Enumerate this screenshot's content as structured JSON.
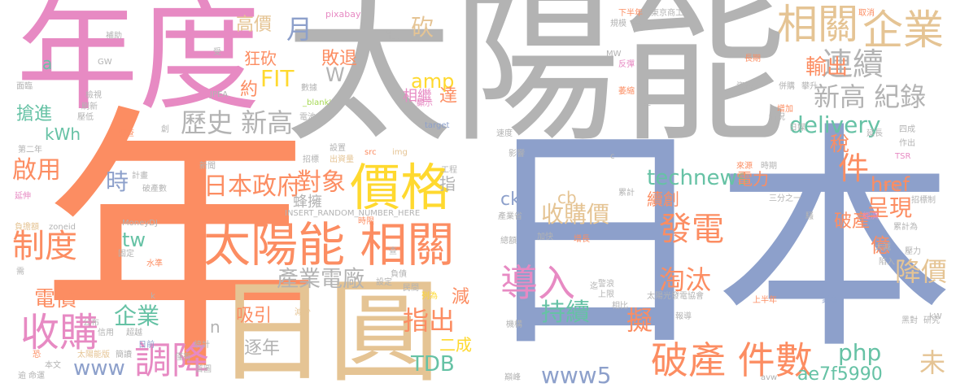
{
  "colors": {
    "orange": "#fc8d62",
    "blue": "#8da0cb",
    "pink": "#e78ac3",
    "green": "#66c2a5",
    "gray": "#b3b3b3",
    "tan": "#e5c494",
    "yellow": "#ffd92f",
    "lime": "#a6d854"
  },
  "words": [
    {
      "id": "w-nian",
      "text": "年",
      "color": "orange"
    },
    {
      "id": "w-riben",
      "text": "日本",
      "color": "blue"
    },
    {
      "id": "w-taiyangneng",
      "text": "太陽能",
      "color": "gray"
    },
    {
      "id": "w-niandu",
      "text": "年度",
      "color": "pink"
    },
    {
      "id": "w-riyuan",
      "text": "日圓",
      "color": "tan"
    },
    {
      "id": "w-taiyangneng-xiangguan",
      "text": "太陽能 相關",
      "color": "orange"
    },
    {
      "id": "w-jiage",
      "text": "價格",
      "color": "yellow"
    },
    {
      "id": "w-xiangguan",
      "text": "相關",
      "color": "tan"
    },
    {
      "id": "w-qiye-top",
      "text": "企業",
      "color": "tan"
    },
    {
      "id": "w-shougou",
      "text": "收購",
      "color": "pink"
    },
    {
      "id": "w-pochan-jianshu",
      "text": "破產 件數",
      "color": "orange"
    },
    {
      "id": "w-daoru",
      "text": "導入",
      "color": "pink"
    },
    {
      "id": "w-zhidu",
      "text": "制度",
      "color": "orange"
    },
    {
      "id": "w-tiaojiang",
      "text": "調降",
      "color": "pink"
    },
    {
      "id": "w-fadian",
      "text": "發電",
      "color": "orange"
    },
    {
      "id": "w-lianxu",
      "text": "連續",
      "color": "gray"
    },
    {
      "id": "w-xingao-jilu",
      "text": "新高 紀錄",
      "color": "gray"
    },
    {
      "id": "w-lishi-xingao",
      "text": "歷史 新高",
      "color": "gray"
    },
    {
      "id": "w-jian",
      "text": "件",
      "color": "orange"
    },
    {
      "id": "w-riben-zhengfu",
      "text": "日本政府",
      "color": "orange"
    },
    {
      "id": "w-duixiang",
      "text": "對象",
      "color": "orange"
    },
    {
      "id": "w-shougoujia",
      "text": "收購價",
      "color": "tan"
    },
    {
      "id": "w-chanye-dianchang",
      "text": "產業電廠",
      "color": "gray"
    },
    {
      "id": "w-delivery",
      "text": "delivery",
      "color": "green"
    },
    {
      "id": "w-technews",
      "text": "technews",
      "color": "green"
    },
    {
      "id": "w-chixu",
      "text": "持續",
      "color": "green"
    },
    {
      "id": "w-zhichu",
      "text": "指出",
      "color": "orange"
    },
    {
      "id": "w-qiye-bottom",
      "text": "企業",
      "color": "green"
    },
    {
      "id": "w-www5",
      "text": "www5",
      "color": "blue"
    },
    {
      "id": "w-php",
      "text": "php",
      "color": "green"
    },
    {
      "id": "w-tdb",
      "text": "TDB",
      "color": "green"
    },
    {
      "id": "w-taotai",
      "text": "淘汰",
      "color": "orange"
    },
    {
      "id": "w-jiangjia",
      "text": "降價",
      "color": "tan"
    },
    {
      "id": "w-chengxian",
      "text": "呈現",
      "color": "orange"
    },
    {
      "id": "w-xibu",
      "text": "吸引",
      "color": "orange"
    },
    {
      "id": "w-zhunian",
      "text": "逐年",
      "color": "gray"
    },
    {
      "id": "w-ni",
      "text": "擬",
      "color": "orange"
    },
    {
      "id": "w-wei",
      "text": "未",
      "color": "tan"
    },
    {
      "id": "w-fit",
      "text": "FIT",
      "color": "yellow"
    },
    {
      "id": "w-amp",
      "text": "amp",
      "color": "yellow"
    },
    {
      "id": "w-shuchu",
      "text": "輸出",
      "color": "orange"
    },
    {
      "id": "w-qiyong",
      "text": "啟用",
      "color": "orange"
    },
    {
      "id": "w-dianjia",
      "text": "電價",
      "color": "orange"
    },
    {
      "id": "w-www",
      "text": "www",
      "color": "blue"
    },
    {
      "id": "w-tw",
      "text": "tw",
      "color": "green"
    },
    {
      "id": "w-shi",
      "text": "時",
      "color": "blue"
    },
    {
      "id": "w-yue",
      "text": "月",
      "color": "blue"
    },
    {
      "id": "w-kuang-kan",
      "text": "狂砍",
      "color": "orange"
    },
    {
      "id": "w-gaojia",
      "text": "高價",
      "color": "tan"
    },
    {
      "id": "w-baitui",
      "text": "敗退",
      "color": "orange"
    },
    {
      "id": "w-kan",
      "text": "砍",
      "color": "tan"
    },
    {
      "id": "w-yue2",
      "text": "約",
      "color": "orange"
    },
    {
      "id": "w-w",
      "text": "W",
      "color": "gray"
    },
    {
      "id": "w-xiangji",
      "text": "相繼",
      "color": "pink"
    },
    {
      "id": "w-da",
      "text": "達",
      "color": "orange"
    },
    {
      "id": "w-qiangjin",
      "text": "搶進",
      "color": "green"
    },
    {
      "id": "w-kwh",
      "text": "kWh",
      "color": "green"
    },
    {
      "id": "w-href",
      "text": "href",
      "color": "orange"
    },
    {
      "id": "w-shui",
      "text": "稅",
      "color": "orange"
    },
    {
      "id": "w-dianli",
      "text": "電力",
      "color": "orange"
    },
    {
      "id": "w-xuchuang",
      "text": "續創",
      "color": "orange"
    },
    {
      "id": "w-yi",
      "text": "億",
      "color": "orange"
    },
    {
      "id": "w-pochan",
      "text": "破產",
      "color": "orange"
    },
    {
      "id": "w-jian2",
      "text": "減",
      "color": "orange"
    },
    {
      "id": "w-ercheng",
      "text": "二成",
      "color": "yellow"
    },
    {
      "id": "w-ck",
      "text": "ck",
      "color": "blue"
    },
    {
      "id": "w-cb",
      "text": "cb",
      "color": "tan"
    },
    {
      "id": "w-ae7f",
      "text": "ae7f5990",
      "color": "green"
    },
    {
      "id": "w-fengyong",
      "text": "蜂擁",
      "color": "gray"
    },
    {
      "id": "w-n",
      "text": "n",
      "color": "gray"
    },
    {
      "id": "w-zhi",
      "text": "指",
      "color": "gray"
    },
    {
      "id": "w-han",
      "text": "含",
      "color": "gray"
    },
    {
      "id": "w-a",
      "text": "a",
      "color": "green"
    },
    {
      "id": "w-pixabay",
      "text": "pixabay",
      "color": "pink"
    },
    {
      "id": "w-jihua",
      "text": "計劃",
      "color": "gray"
    },
    {
      "id": "w-shou",
      "text": "受",
      "color": "gray"
    },
    {
      "id": "w-gw",
      "text": "GW",
      "color": "gray"
    },
    {
      "id": "w-buzhu",
      "text": "補助",
      "color": "gray"
    },
    {
      "id": "w-mianlin",
      "text": "面臨",
      "color": "gray"
    },
    {
      "id": "w-jianshi",
      "text": "檢視",
      "color": "gray"
    },
    {
      "id": "w-jiangdi",
      "text": "壓低",
      "color": "gray"
    },
    {
      "id": "w-shuaxin",
      "text": "刷新",
      "color": "gray"
    },
    {
      "id": "w-diaocha",
      "text": "調查",
      "color": "orange"
    },
    {
      "id": "w-chuang",
      "text": "創",
      "color": "gray"
    },
    {
      "id": "w-jpea",
      "text": "JPEA",
      "color": "gray"
    },
    {
      "id": "w-shuju",
      "text": "數據",
      "color": "gray"
    },
    {
      "id": "w-dianchi",
      "text": "電池",
      "color": "gray"
    },
    {
      "id": "w-blank",
      "text": "_blank'",
      "color": "lime"
    },
    {
      "id": "w-target",
      "text": "target",
      "color": "blue"
    },
    {
      "id": "w-xianshi",
      "text": "顯示",
      "color": "pink"
    },
    {
      "id": "w-dierian",
      "text": "第二年",
      "color": "gray"
    },
    {
      "id": "w-xinwen",
      "text": "新聞",
      "color": "gray"
    },
    {
      "id": "w-yanshen",
      "text": "延伸",
      "color": "pink"
    },
    {
      "id": "w-jihua2",
      "text": "計畫",
      "color": "gray"
    },
    {
      "id": "w-pochanshu",
      "text": "破產數",
      "color": "gray"
    },
    {
      "id": "w-shezhi",
      "text": "設置",
      "color": "gray"
    },
    {
      "id": "w-chuzijin",
      "text": "出資量",
      "color": "tan"
    },
    {
      "id": "w-zhaobiao",
      "text": "招標",
      "color": "gray"
    },
    {
      "id": "w-src",
      "text": "src",
      "color": "orange"
    },
    {
      "id": "w-img",
      "text": "img",
      "color": "tan"
    },
    {
      "id": "w-gongcheng",
      "text": "工程",
      "color": "gray"
    },
    {
      "id": "w-insert",
      "text": "INSERT_RANDOM_NUMBER_HERE",
      "color": "gray"
    },
    {
      "id": "w-shijian",
      "text": "時限",
      "color": "orange"
    },
    {
      "id": "w-fudanzhe",
      "text": "負擔額",
      "color": "tan"
    },
    {
      "id": "w-zoneid",
      "text": "zoneid",
      "color": "gray"
    },
    {
      "id": "w-moneydj",
      "text": "MoneyDJ",
      "color": "gray"
    },
    {
      "id": "w-guding",
      "text": "固定",
      "color": "gray"
    },
    {
      "id": "w-shuizhun",
      "text": "水準",
      "color": "orange"
    },
    {
      "id": "w-xu",
      "text": "需",
      "color": "gray"
    },
    {
      "id": "w-k",
      "text": "k",
      "color": "gray"
    },
    {
      "id": "w-gongbu",
      "text": "公布",
      "color": "gray"
    },
    {
      "id": "w-xinyong",
      "text": "信用",
      "color": "gray"
    },
    {
      "id": "w-chaoyue",
      "text": "超越",
      "color": "gray"
    },
    {
      "id": "w-kong",
      "text": "恐",
      "color": "orange"
    },
    {
      "id": "w-benwen",
      "text": "本文",
      "color": "gray"
    },
    {
      "id": "w-taiyangneng-ban",
      "text": "太陽能版",
      "color": "tan"
    },
    {
      "id": "w-jiandu",
      "text": "簡讀",
      "color": "gray"
    },
    {
      "id": "w-tongji",
      "text": "統計",
      "color": "gray"
    },
    {
      "id": "w-jinyou",
      "text": "僅有",
      "color": "gray"
    },
    {
      "id": "w-riqian",
      "text": "日前",
      "color": "blue"
    },
    {
      "id": "w-shouye",
      "text": "首圖",
      "color": "gray"
    },
    {
      "id": "w-yu",
      "text": "逾",
      "color": "gray"
    },
    {
      "id": "w-mingyun",
      "text": "命運",
      "color": "gray"
    },
    {
      "id": "w-jianshao",
      "text": "減少",
      "color": "tan"
    },
    {
      "id": "w-shedding",
      "text": "設定",
      "color": "gray"
    },
    {
      "id": "w-fuzhai",
      "text": "負債",
      "color": "gray"
    },
    {
      "id": "w-minjian",
      "text": "民間",
      "color": "gray"
    },
    {
      "id": "w-liewei",
      "text": "列為",
      "color": "yellow"
    },
    {
      "id": "w-cha",
      "text": "查",
      "color": "gray"
    },
    {
      "id": "w-leijian",
      "text": "累計",
      "color": "gray"
    },
    {
      "id": "w-chanyesheng",
      "text": "產業省",
      "color": "gray"
    },
    {
      "id": "w-zongqian",
      "text": "總額",
      "color": "gray"
    },
    {
      "id": "w-jiakuai",
      "text": "加快",
      "color": "gray"
    },
    {
      "id": "w-zengzhang",
      "text": "增長",
      "color": "orange"
    },
    {
      "id": "w-jiangzhi",
      "text": "警浪",
      "color": "gray"
    },
    {
      "id": "w-shangxian",
      "text": "上限",
      "color": "gray"
    },
    {
      "id": "w-xiangbi",
      "text": "相比",
      "color": "gray"
    },
    {
      "id": "w-jigou",
      "text": "機構",
      "color": "gray"
    },
    {
      "id": "w-diefeng",
      "text": "巔峰",
      "color": "gray"
    },
    {
      "id": "w-ji",
      "text": "迄",
      "color": "gray"
    },
    {
      "id": "w-tykdxh",
      "text": "太陽光發電協會",
      "color": "gray"
    },
    {
      "id": "w-baodao",
      "text": "報導",
      "color": "gray"
    },
    {
      "id": "w-shangbannian",
      "text": "上半年",
      "color": "orange"
    },
    {
      "id": "w-yezhe",
      "text": "業者",
      "color": "blue"
    },
    {
      "id": "w-yanjiu",
      "text": "研究",
      "color": "gray"
    },
    {
      "id": "w-kw",
      "text": "kW",
      "color": "gray"
    },
    {
      "id": "w-dian-dui",
      "text": "黑對",
      "color": "gray"
    },
    {
      "id": "w-avw",
      "text": "avw",
      "color": "gray"
    },
    {
      "id": "w-xiabannian",
      "text": "下半年",
      "color": "orange"
    },
    {
      "id": "w-dongjing",
      "text": "東京商工",
      "color": "gray"
    },
    {
      "id": "w-guimo",
      "text": "規模",
      "color": "gray"
    },
    {
      "id": "w-mw",
      "text": "MW",
      "color": "gray"
    },
    {
      "id": "w-fanzhuan",
      "text": "反彈",
      "color": "pink"
    },
    {
      "id": "w-suoxiao",
      "text": "萎縮",
      "color": "orange"
    },
    {
      "id": "w-ban",
      "text": "半",
      "color": "gray"
    },
    {
      "id": "w-quxiao",
      "text": "取消",
      "color": "orange"
    },
    {
      "id": "w-changqi",
      "text": "長期",
      "color": "orange"
    },
    {
      "id": "w-zige",
      "text": "資格",
      "color": "gray"
    },
    {
      "id": "w-bingchou",
      "text": "併購",
      "color": "gray"
    },
    {
      "id": "w-panshang",
      "text": "攀升",
      "color": "gray"
    },
    {
      "id": "w-zengjia",
      "text": "增加",
      "color": "orange"
    },
    {
      "id": "w-qingkuang",
      "text": "情況",
      "color": "gray"
    },
    {
      "id": "w-rimei",
      "text": "日媒",
      "color": "gray"
    },
    {
      "id": "w-sudu",
      "text": "速度",
      "color": "gray"
    },
    {
      "id": "w-yingxiang",
      "text": "影響",
      "color": "gray"
    },
    {
      "id": "w-c",
      "text": "c",
      "color": "gray"
    },
    {
      "id": "w-yanzhang",
      "text": "延長",
      "color": "gray"
    },
    {
      "id": "w-sicheng",
      "text": "四成",
      "color": "gray"
    },
    {
      "id": "w-zuochu",
      "text": "作出",
      "color": "gray"
    },
    {
      "id": "w-tsr",
      "text": "TSR",
      "color": "pink"
    },
    {
      "id": "w-laiyuan",
      "text": "來源",
      "color": "orange"
    },
    {
      "id": "w-shiqi",
      "text": "時期",
      "color": "gray"
    },
    {
      "id": "w-qianwa",
      "text": "千瓦",
      "color": "orange"
    },
    {
      "id": "w-zhaobiaozhi",
      "text": "招標制",
      "color": "gray"
    },
    {
      "id": "w-jingji",
      "text": "經濟",
      "color": "pink"
    },
    {
      "id": "w-leiji-sheng",
      "text": "累計為",
      "color": "gray"
    },
    {
      "id": "w-sanfenzhiyi",
      "text": "三分之一",
      "color": "gray"
    },
    {
      "id": "w-sao",
      "text": "騷",
      "color": "gray"
    },
    {
      "id": "w-dajian",
      "text": "大減",
      "color": "gray"
    },
    {
      "id": "w-yali",
      "text": "壓力",
      "color": "gray"
    },
    {
      "id": "w-xianru",
      "text": "陷入",
      "color": "gray"
    }
  ]
}
